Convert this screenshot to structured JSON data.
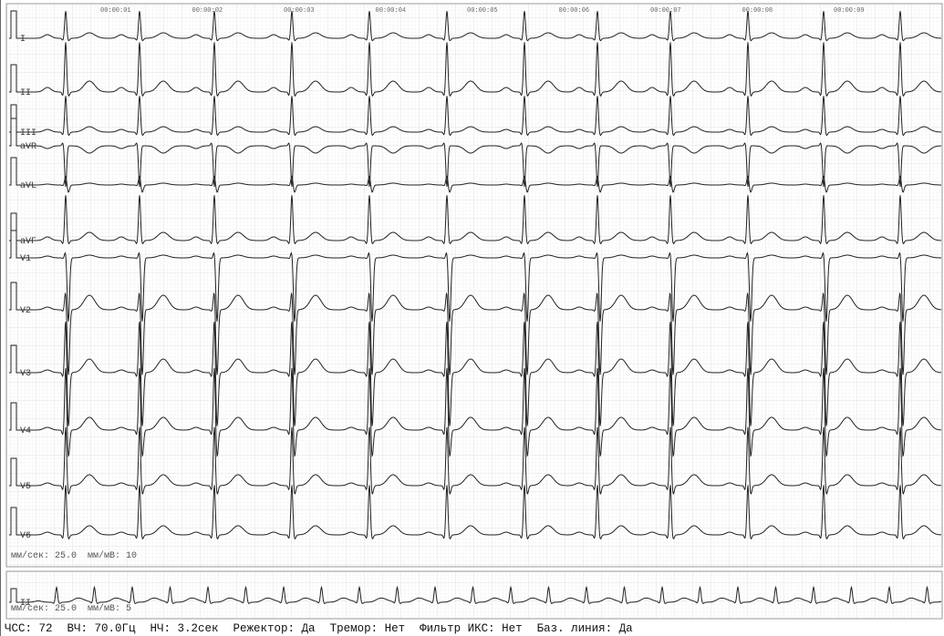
{
  "time_labels": [
    "00:00:01",
    "00:00:02",
    "00:00:03",
    "00:00:04",
    "00:00:05",
    "00:00:06",
    "00:00:07",
    "00:00:08",
    "00:00:09"
  ],
  "leads": [
    "I",
    "II",
    "III",
    "aVR",
    "aVL",
    "aVF",
    "V1",
    "V2",
    "V3",
    "V4",
    "V5",
    "V6"
  ],
  "main_scale": "мм/сек: 25.0  мм/мВ: 10",
  "rhythm": {
    "lead": "II",
    "scale": "мм/сек: 25.0  мм/мВ: 5"
  },
  "status": [
    "ЧСС: 72",
    "ВЧ: 70.0Гц",
    "НЧ: 3.2сек",
    "Режектор: Да",
    "Тремор: Нет",
    "Фильтр ИКС: Нет",
    "Баз. линия: Да"
  ]
}
